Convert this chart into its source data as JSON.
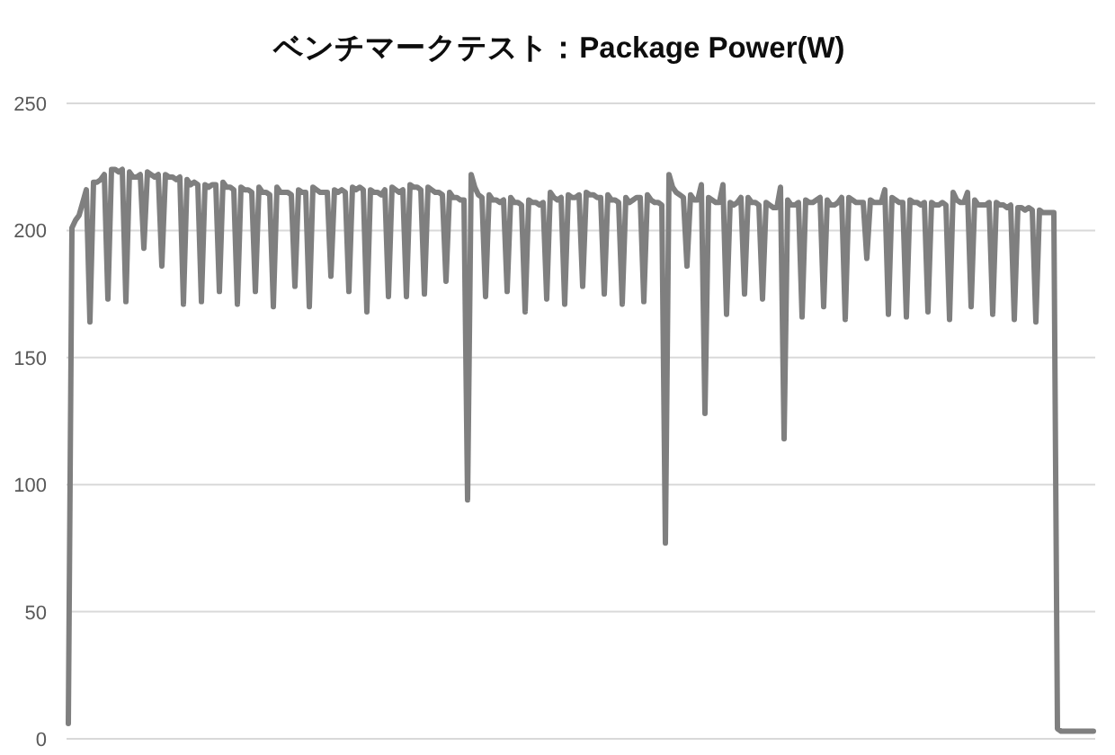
{
  "chart_data": {
    "type": "line",
    "title": "ベンチマークテスト：Package Power(W)",
    "categories": [
      null,
      null,
      null,
      null,
      null,
      null,
      null,
      null,
      null,
      null,
      null,
      null,
      null,
      null,
      null,
      null,
      null,
      null,
      null,
      null,
      null,
      null,
      null,
      null,
      null,
      null,
      null,
      null,
      null,
      null,
      null,
      null,
      null,
      null,
      null,
      null,
      null,
      null,
      null,
      null,
      null,
      null,
      null,
      null,
      null,
      null,
      null,
      null,
      null,
      null,
      null,
      null,
      null,
      null,
      null,
      null,
      null,
      null,
      null,
      null,
      null,
      null,
      null,
      null,
      null,
      null,
      null,
      null,
      null,
      null,
      null,
      null,
      null,
      null,
      null,
      null,
      null,
      null,
      null,
      null,
      null,
      null,
      null,
      null,
      null,
      null,
      null,
      null,
      null,
      null,
      null,
      null,
      null,
      null,
      null,
      null,
      null,
      null,
      null,
      null,
      null,
      null,
      null,
      null,
      null,
      null,
      null,
      null,
      null,
      null,
      null,
      null,
      null,
      null,
      null,
      null,
      null,
      null,
      null,
      null,
      null,
      null,
      null,
      null,
      null,
      null,
      null,
      null,
      null,
      null,
      null,
      null,
      null,
      null,
      null,
      null,
      null,
      null,
      null,
      null,
      null,
      null,
      null,
      null,
      null,
      null,
      null,
      null,
      null,
      null,
      null,
      null,
      null,
      null,
      null,
      null,
      null,
      null,
      null,
      null,
      null,
      null,
      null,
      null,
      null,
      null,
      null,
      null,
      null,
      null,
      null,
      null,
      null,
      null,
      null,
      null,
      null,
      null,
      null,
      null,
      null,
      null,
      null,
      null,
      null,
      null,
      null,
      null,
      null,
      null,
      null,
      null,
      null,
      null,
      null,
      null,
      null,
      null,
      null,
      null,
      null,
      null,
      null,
      null,
      null,
      null,
      null,
      null,
      null,
      null,
      null,
      null,
      null,
      null,
      null,
      null,
      null,
      null,
      null,
      null,
      null,
      null,
      null,
      null,
      null,
      null,
      null,
      null,
      null,
      null,
      null,
      null,
      null,
      null,
      null,
      null,
      null,
      null,
      null,
      null,
      null,
      null,
      null,
      null,
      null,
      null,
      null,
      null,
      null,
      null,
      null,
      null,
      null,
      null,
      null,
      null,
      null,
      null,
      null,
      null,
      null,
      null,
      null,
      null,
      null,
      null,
      null,
      null,
      null,
      null,
      null,
      null,
      null,
      null,
      null,
      null,
      null,
      null,
      null,
      null,
      null,
      null,
      null,
      null,
      null,
      null
    ],
    "series": [
      {
        "color": "#7f7f7f",
        "values": [
          6,
          201,
          204,
          206,
          211,
          216,
          164,
          219,
          219,
          220,
          222,
          173,
          224,
          224,
          223,
          224,
          172,
          223,
          221,
          221,
          222,
          193,
          223,
          222,
          221,
          222,
          186,
          222,
          221,
          221,
          220,
          221,
          171,
          220,
          218,
          219,
          218,
          172,
          218,
          217,
          218,
          218,
          176,
          219,
          217,
          217,
          216,
          171,
          217,
          216,
          216,
          215,
          176,
          217,
          215,
          215,
          214,
          170,
          217,
          215,
          215,
          215,
          214,
          178,
          216,
          215,
          215,
          170,
          217,
          216,
          215,
          215,
          215,
          182,
          216,
          215,
          216,
          215,
          176,
          217,
          216,
          217,
          216,
          168,
          216,
          215,
          215,
          214,
          216,
          174,
          217,
          216,
          215,
          216,
          174,
          218,
          217,
          217,
          216,
          175,
          217,
          216,
          215,
          215,
          214,
          180,
          215,
          213,
          213,
          212,
          212,
          94,
          222,
          217,
          214,
          213,
          174,
          214,
          212,
          212,
          211,
          212,
          176,
          213,
          211,
          211,
          210,
          168,
          212,
          211,
          211,
          210,
          211,
          173,
          215,
          213,
          212,
          213,
          171,
          214,
          213,
          213,
          214,
          178,
          215,
          214,
          214,
          213,
          213,
          175,
          214,
          212,
          212,
          211,
          171,
          213,
          211,
          212,
          213,
          213,
          172,
          214,
          212,
          211,
          211,
          210,
          77,
          222,
          217,
          215,
          214,
          213,
          186,
          214,
          212,
          212,
          218,
          128,
          213,
          212,
          211,
          211,
          218,
          167,
          211,
          210,
          211,
          213,
          175,
          213,
          211,
          211,
          210,
          173,
          211,
          210,
          209,
          209,
          217,
          118,
          212,
          210,
          210,
          211,
          166,
          212,
          211,
          211,
          212,
          213,
          170,
          212,
          210,
          210,
          211,
          213,
          165,
          213,
          212,
          211,
          211,
          211,
          189,
          212,
          211,
          211,
          211,
          216,
          167,
          213,
          212,
          211,
          211,
          166,
          212,
          211,
          211,
          210,
          211,
          168,
          211,
          210,
          210,
          211,
          210,
          165,
          215,
          212,
          211,
          211,
          215,
          170,
          212,
          210,
          210,
          210,
          211,
          167,
          211,
          210,
          210,
          209,
          210,
          165,
          209,
          209,
          208,
          209,
          208,
          164,
          208,
          207,
          207,
          207,
          207,
          4,
          3,
          3,
          3,
          3,
          3,
          3,
          3,
          3,
          3,
          3
        ]
      }
    ],
    "ylim": [
      0,
      250
    ],
    "yticks": [
      0,
      50,
      100,
      150,
      200,
      250
    ],
    "grid": "y",
    "tick_labels": "y"
  }
}
